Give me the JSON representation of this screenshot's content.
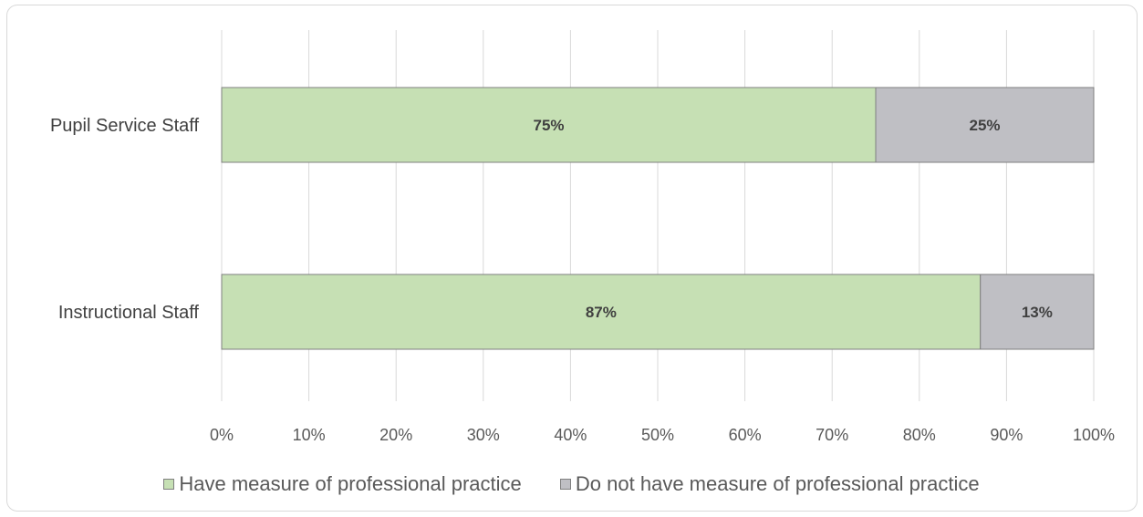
{
  "chart_data": {
    "type": "bar",
    "orientation": "horizontal",
    "stacked": true,
    "categories": [
      "Pupil Service Staff",
      "Instructional Staff"
    ],
    "series": [
      {
        "name": "Have measure of professional practice",
        "values": [
          75,
          87
        ],
        "labels": [
          "75%",
          "87%"
        ],
        "color": "#c6e0b4"
      },
      {
        "name": "Do not have measure of professional practice",
        "values": [
          25,
          13
        ],
        "labels": [
          "25%",
          "13%"
        ],
        "color": "#bfbfc4"
      }
    ],
    "xlim": [
      0,
      100
    ],
    "x_ticks": [
      0,
      10,
      20,
      30,
      40,
      50,
      60,
      70,
      80,
      90,
      100
    ],
    "x_tick_labels": [
      "0%",
      "10%",
      "20%",
      "30%",
      "40%",
      "50%",
      "60%",
      "70%",
      "80%",
      "90%",
      "100%"
    ],
    "grid": true,
    "legend": "bottom",
    "title": "",
    "xlabel": "",
    "ylabel": ""
  }
}
